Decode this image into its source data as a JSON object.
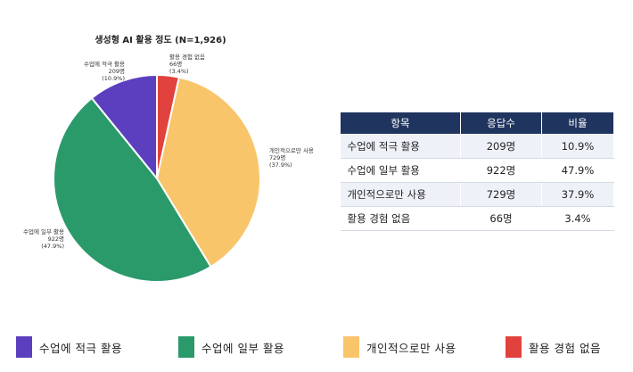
{
  "chart_data": {
    "type": "pie",
    "title": "생성형 AI 활용 정도 (N=1,926)",
    "total": 1926,
    "slices": [
      {
        "name": "수업에 적극 활용",
        "value": 209,
        "value_label": "209명",
        "pct_label": "(10.9%)",
        "color": "#5b3fbf"
      },
      {
        "name": "수업에 일부 활용",
        "value": 922,
        "value_label": "922명",
        "pct_label": "(47.9%)",
        "color": "#2a9a6a"
      },
      {
        "name": "개인적으로만 사용",
        "value": 729,
        "value_label": "729명",
        "pct_label": "(37.9%)",
        "color": "#f9c56b"
      },
      {
        "name": "활용 경험 없음",
        "value": 66,
        "value_label": "66명",
        "pct_label": "(3.4%)",
        "color": "#e2423e"
      }
    ]
  },
  "table": {
    "headers": [
      "항목",
      "응답수",
      "비율"
    ],
    "rows": [
      [
        "수업에 적극 활용",
        "209명",
        "10.9%"
      ],
      [
        "수업에 일부 활용",
        "922명",
        "47.9%"
      ],
      [
        "개인적으로만 사용",
        "729명",
        "37.9%"
      ],
      [
        "활용 경험 없음",
        "66명",
        "3.4%"
      ]
    ]
  },
  "legend": [
    {
      "label": "수업에 적극 활용",
      "color": "#5b3fbf"
    },
    {
      "label": "수업에 일부 활용",
      "color": "#2a9a6a"
    },
    {
      "label": "개인적으로만 사용",
      "color": "#f9c56b"
    },
    {
      "label": "활용 경험 없음",
      "color": "#e2423e"
    }
  ]
}
